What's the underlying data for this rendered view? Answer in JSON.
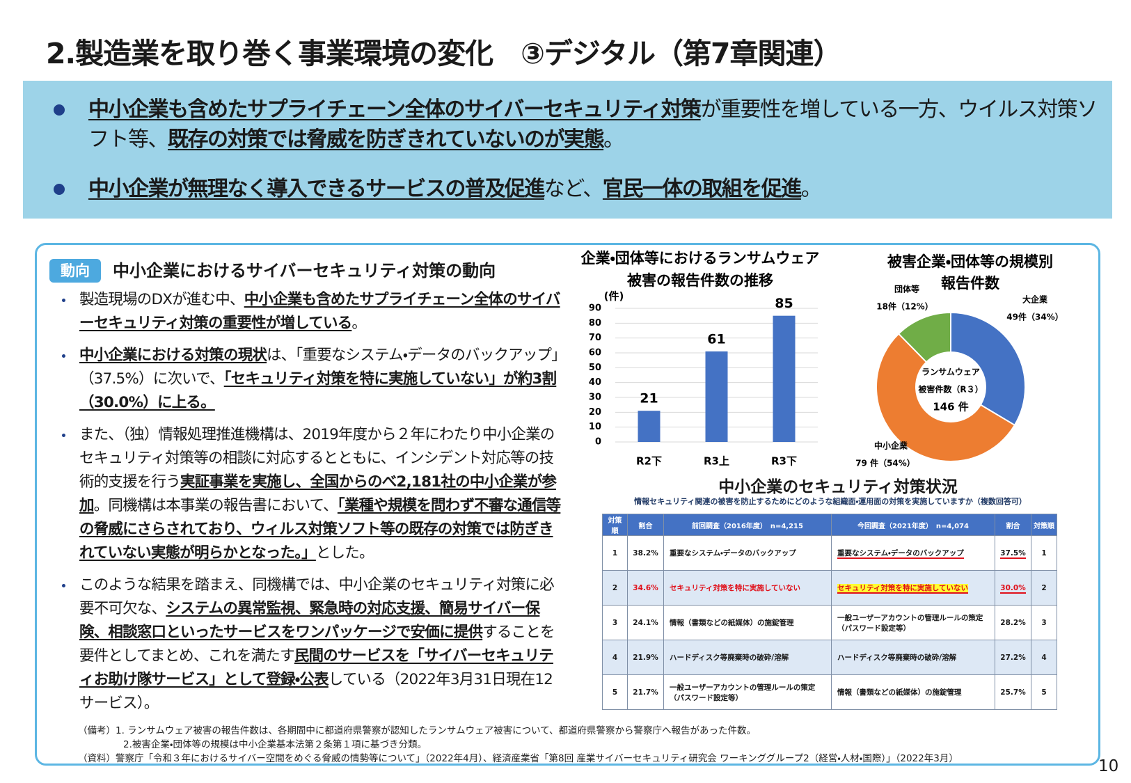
{
  "title": "2.製造業を取り巻く事業環境の変化　③デジタル（第7章関連）",
  "summary": {
    "bullets": [
      {
        "runs": [
          {
            "text": "中小企業も含めたサプライチェーン全体のサイバーセキュリティ対策",
            "bold": true
          },
          {
            "text": "が重要性を増している一方、ウイルス対策ソフト等、"
          },
          {
            "text": "既存の対策では脅威を防ぎきれていないのが実態",
            "bold": true
          },
          {
            "text": "。"
          }
        ]
      },
      {
        "runs": [
          {
            "text": "中小企業が無理なく導入できるサービスの普及促進",
            "bold": true
          },
          {
            "text": "など、"
          },
          {
            "text": "官民一体の取組を促進",
            "bold": true
          },
          {
            "text": "。"
          }
        ]
      }
    ]
  },
  "trend": {
    "badge": "動向",
    "heading": "中小企業におけるサイバーセキュリティ対策の動向",
    "bullets": [
      {
        "runs": [
          {
            "text": "製造現場のDXが進む中、"
          },
          {
            "text": "中小企業も含めたサプライチェーン全体のサイバーセキュリティ対策の重要性が増している",
            "bold": true
          },
          {
            "text": "。"
          }
        ]
      },
      {
        "runs": [
          {
            "text": "中小企業における対策の現状",
            "bold": true
          },
          {
            "text": "は、「重要なシステム・データのバックアップ」（37.5%）に次いで、"
          },
          {
            "text": "「セキュリティ対策を特に実施していない」が約3割（30.0%）に上る。",
            "bold": true
          }
        ]
      },
      {
        "runs": [
          {
            "text": "また、（独）情報処理推進機構は、2019年度から２年にわたり中小企業のセキュリティ対策等の相談に対応するとともに、インシデント対応等の技術的支援を行う"
          },
          {
            "text": "実証事業を実施し、全国からのべ2,181社の中小企業が参加",
            "bold": true
          },
          {
            "text": "。同機構は本事業の報告書において、"
          },
          {
            "text": "「業種や規模を問わず不審な通信等の脅威にさらされており、ウィルス対策ソフト等の既存の対策では防ぎきれていない実態が明らかとなった。」",
            "bold": true
          },
          {
            "text": "とした。"
          }
        ]
      },
      {
        "runs": [
          {
            "text": "このような結果を踏まえ、同機構では、中小企業のセキュリティ対策に必要不可欠な、"
          },
          {
            "text": "システムの異常監視、緊急時の対応支援、簡易サイバー保険、相談窓口といったサービスをワンパッケージで安価に提供",
            "bold": true
          },
          {
            "text": "することを要件としてまとめ、これを満たす"
          },
          {
            "text": "民間のサービスを「サイバーセキュリティお助け隊サービス」として登録・公表",
            "bold": true
          },
          {
            "text": "している（2022年3月31日現在12サービス）。"
          }
        ]
      }
    ]
  },
  "bar_chart": {
    "type": "bar",
    "title": [
      "企業・団体等におけるランサムウェア",
      "被害の報告件数の推移"
    ],
    "y_unit": "(件)",
    "categories": [
      "R2下",
      "R3上",
      "R3下"
    ],
    "values": [
      21,
      61,
      85
    ],
    "color": "#4472c4",
    "ylim": [
      0,
      90
    ],
    "yticks": [
      0,
      10,
      20,
      30,
      40,
      50,
      60,
      70,
      80,
      90
    ],
    "grid": true
  },
  "pie_chart": {
    "type": "donut",
    "title": [
      "被害企業・団体等の規模別",
      "報告件数"
    ],
    "categories": [
      "大企業",
      "中小企業",
      "団体等"
    ],
    "values": [
      49,
      79,
      18
    ],
    "value_labels": [
      "49件（34%）",
      "79 件（54%）",
      "18件（12%）"
    ],
    "colors": [
      "#4472c4",
      "#ed7d31",
      "#70ad47"
    ],
    "center_lines": [
      "ランサムウェア",
      "被害件数（R３）",
      "146 件"
    ]
  },
  "table": {
    "title": "中小企業のセキュリティ対策状況",
    "subtitle": "情報セキュリティ関連の被害を防止するためにどのような組織面・運用面の対策を実施していますか（複数回答可）",
    "header": [
      "対策順",
      "割合",
      "前回調査（2016年度）　n=4,215",
      "今回調査（2021年度）　n=4,074",
      "割合",
      "対策順"
    ],
    "rows": [
      [
        "1",
        "38.2%",
        "重要なシステム・データのバックアップ",
        "重要なシステム・データのバックアップ",
        "37.5%",
        "1"
      ],
      [
        "2",
        "34.6%",
        "セキュリティ対策を特に実施していない",
        "セキュリティ対策を特に実施していない",
        "30.0%",
        "2"
      ],
      [
        "3",
        "24.1%",
        "情報（書類などの紙媒体）の施錠管理",
        "一般ユーザーアカウントの管理ルールの策定（パスワード設定等）",
        "28.2%",
        "3"
      ],
      [
        "4",
        "21.9%",
        "ハードディスク等廃棄時の破砕/溶解",
        "ハードディスク等廃棄時の破砕/溶解",
        "27.2%",
        "4"
      ],
      [
        "5",
        "21.7%",
        "一般ユーザーアカウントの管理ルールの策定（パスワード設定等）",
        "情報（書類などの紙媒体）の施錠管理",
        "25.7%",
        "5"
      ]
    ]
  },
  "notes": [
    "（備考）1. ランサムウェア被害の報告件数は、各期間中に都道府県警察が認知したランサムウェア被害について、都道府県警察から警察庁へ報告があった件数。",
    "2.被害企業・団体等の規模は中小企業基本法第２条第１項に基づき分類。",
    "（資料）警察庁「令和３年におけるサイバー空間をめぐる脅威の情勢等について」（2022年4月）、経済産業省「第8回 産業サイバーセキュリティ研究会 ワーキンググループ2（経営・人材・国際）」（2022年3月）"
  ],
  "page_number": "10"
}
